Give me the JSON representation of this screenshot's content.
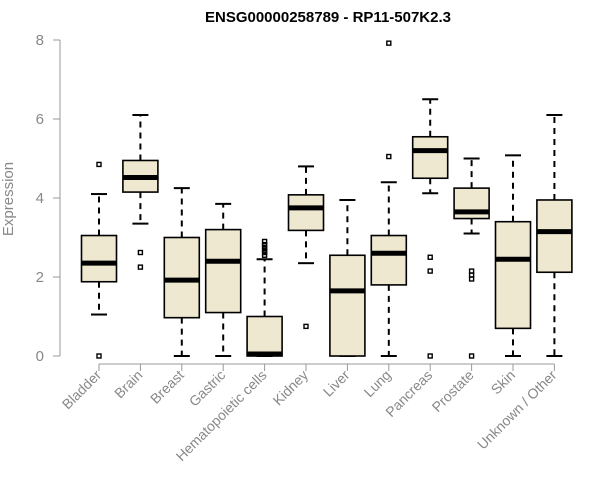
{
  "chart_data": {
    "type": "boxplot",
    "title": "ENSG00000258789 - RP11-507K2.3",
    "xlabel": "",
    "ylabel": "Expression",
    "ylim": [
      0,
      8
    ],
    "yticks": [
      0,
      2,
      4,
      6,
      8
    ],
    "grid": false,
    "colors": {
      "box_fill": "#efe8d0",
      "stroke": "#000000",
      "axis": "#999999",
      "label": "#888888"
    },
    "categories": [
      "Bladder",
      "Brain",
      "Breast",
      "Gastric",
      "Hematopoietic cells",
      "Kidney",
      "Liver",
      "Lung",
      "Pancreas",
      "Prostate",
      "Skin",
      "Unknown / Other"
    ],
    "boxes": [
      {
        "name": "Bladder",
        "whisker_low": 1.05,
        "q1": 1.88,
        "median": 2.35,
        "q3": 3.05,
        "whisker_high": 4.1,
        "outliers": [
          0.0,
          4.85
        ]
      },
      {
        "name": "Brain",
        "whisker_low": 3.35,
        "q1": 4.15,
        "median": 4.52,
        "q3": 4.95,
        "whisker_high": 6.1,
        "outliers": [
          2.25,
          2.62
        ]
      },
      {
        "name": "Breast",
        "whisker_low": 0.0,
        "q1": 0.97,
        "median": 1.92,
        "q3": 3.0,
        "whisker_high": 4.25,
        "outliers": []
      },
      {
        "name": "Gastric",
        "whisker_low": 0.0,
        "q1": 1.1,
        "median": 2.4,
        "q3": 3.2,
        "whisker_high": 3.85,
        "outliers": []
      },
      {
        "name": "Hematopoietic cells",
        "whisker_low": 0.0,
        "q1": 0.0,
        "median": 0.05,
        "q3": 1.0,
        "whisker_high": 2.45,
        "outliers": [
          2.55,
          2.62,
          2.68,
          2.75,
          2.82,
          2.9
        ]
      },
      {
        "name": "Kidney",
        "whisker_low": 2.35,
        "q1": 3.18,
        "median": 3.75,
        "q3": 4.08,
        "whisker_high": 4.8,
        "outliers": [
          0.75
        ]
      },
      {
        "name": "Liver",
        "whisker_low": 0.0,
        "q1": 0.0,
        "median": 1.65,
        "q3": 2.55,
        "whisker_high": 3.95,
        "outliers": []
      },
      {
        "name": "Lung",
        "whisker_low": 0.0,
        "q1": 1.8,
        "median": 2.6,
        "q3": 3.05,
        "whisker_high": 4.4,
        "outliers": [
          5.05,
          7.92
        ]
      },
      {
        "name": "Pancreas",
        "whisker_low": 4.12,
        "q1": 4.5,
        "median": 5.2,
        "q3": 5.55,
        "whisker_high": 6.5,
        "outliers": [
          0.0,
          2.15,
          2.5
        ]
      },
      {
        "name": "Prostate",
        "whisker_low": 3.1,
        "q1": 3.48,
        "median": 3.65,
        "q3": 4.25,
        "whisker_high": 5.0,
        "outliers": [
          0.0,
          1.95,
          2.05,
          2.15
        ]
      },
      {
        "name": "Skin",
        "whisker_low": 0.0,
        "q1": 0.7,
        "median": 2.45,
        "q3": 3.4,
        "whisker_high": 5.08,
        "outliers": []
      },
      {
        "name": "Unknown / Other",
        "whisker_low": 0.0,
        "q1": 2.12,
        "median": 3.15,
        "q3": 3.95,
        "whisker_high": 6.1,
        "outliers": []
      }
    ]
  }
}
